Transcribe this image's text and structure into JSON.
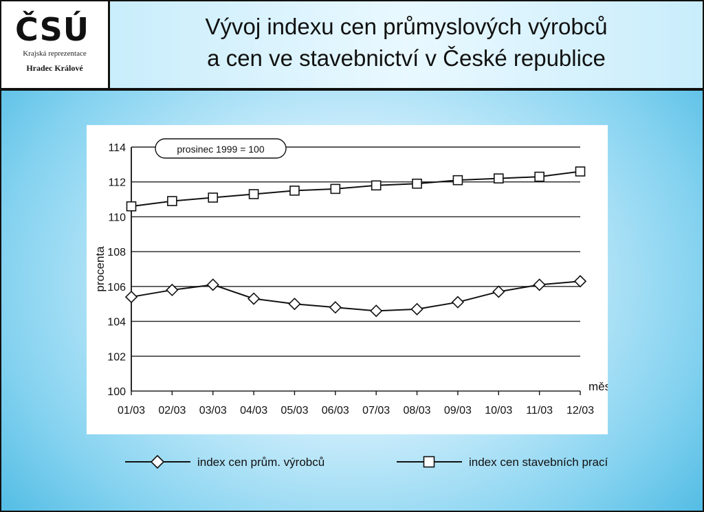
{
  "logo": {
    "mark": "ČSÚ",
    "line1": "Krajská reprezentace",
    "line2": "Hradec Králové"
  },
  "title": {
    "line1": "Vývoj indexu  cen průmyslových výrobců",
    "line2": "a cen ve stavebnictví v České republice"
  },
  "chart_data": {
    "type": "line",
    "annotation": "prosinec 1999 = 100",
    "ylabel": "procenta",
    "xlabel": "měsíc",
    "categories": [
      "01/03",
      "02/03",
      "03/03",
      "04/03",
      "05/03",
      "06/03",
      "07/03",
      "08/03",
      "09/03",
      "10/03",
      "11/03",
      "12/03"
    ],
    "ylim": [
      100,
      114
    ],
    "yticks": [
      100,
      102,
      104,
      106,
      108,
      110,
      112,
      114
    ],
    "grid": true,
    "legend_position": "bottom",
    "series": [
      {
        "name": "index cen prům. výrobců",
        "marker": "diamond",
        "values": [
          105.4,
          105.8,
          106.1,
          105.3,
          105.0,
          104.8,
          104.6,
          104.7,
          105.1,
          105.7,
          106.1,
          106.3
        ]
      },
      {
        "name": "index cen stavebních prací",
        "marker": "square",
        "values": [
          110.6,
          110.9,
          111.1,
          111.3,
          111.5,
          111.6,
          111.8,
          111.9,
          112.1,
          112.2,
          112.3,
          112.6
        ]
      }
    ],
    "colors": {
      "line": "#111111",
      "grid": "#222222",
      "marker_fill": "#ffffff"
    }
  }
}
